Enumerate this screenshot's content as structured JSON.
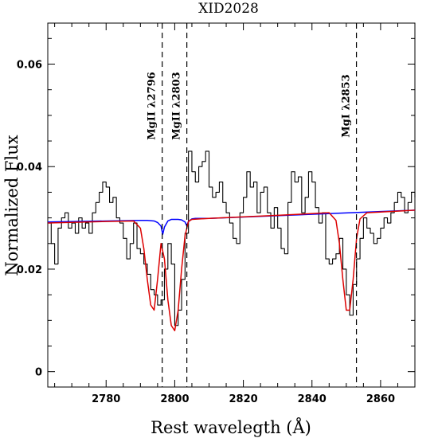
{
  "chart_data": {
    "type": "line",
    "title": "XID2028",
    "xlabel": "Rest wavelegth (Å)",
    "ylabel": "Normalized Flux",
    "xlim": [
      2763,
      2870
    ],
    "ylim": [
      -0.003,
      0.068
    ],
    "x_ticks": [
      2780,
      2800,
      2820,
      2840,
      2860
    ],
    "x_tick_labels": [
      "2780",
      "2800",
      "2820",
      "2840",
      "2860"
    ],
    "y_ticks": [
      0,
      0.02,
      0.04,
      0.06
    ],
    "y_tick_labels": [
      "0",
      "0.02",
      "0.04",
      "0.06"
    ],
    "grid": false,
    "lines": [
      {
        "label": "MgII λ2796",
        "x": 2796.35
      },
      {
        "label": "MgII λ2803",
        "x": 2803.53
      },
      {
        "label": "MgI λ2853",
        "x": 2852.96
      }
    ],
    "series": [
      {
        "style": "step",
        "color": "#000000",
        "x": [
          2763,
          2764,
          2765,
          2766,
          2767,
          2768,
          2769,
          2770,
          2771,
          2772,
          2773,
          2774,
          2775,
          2776,
          2777,
          2778,
          2779,
          2780,
          2781,
          2782,
          2783,
          2784,
          2785,
          2786,
          2787,
          2788,
          2789,
          2790,
          2791,
          2792,
          2793,
          2794,
          2795,
          2796,
          2797,
          2798,
          2799,
          2800,
          2801,
          2802,
          2803,
          2804,
          2805,
          2806,
          2807,
          2808,
          2809,
          2810,
          2811,
          2812,
          2813,
          2814,
          2815,
          2816,
          2817,
          2818,
          2819,
          2820,
          2821,
          2822,
          2823,
          2824,
          2825,
          2826,
          2827,
          2828,
          2829,
          2830,
          2831,
          2832,
          2833,
          2834,
          2835,
          2836,
          2837,
          2838,
          2839,
          2840,
          2841,
          2842,
          2843,
          2844,
          2845,
          2846,
          2847,
          2848,
          2849,
          2850,
          2851,
          2852,
          2853,
          2854,
          2855,
          2856,
          2857,
          2858,
          2859,
          2860,
          2861,
          2862,
          2863,
          2864,
          2865,
          2866,
          2867,
          2868,
          2869,
          2870
        ],
        "y": [
          0.029,
          0.025,
          0.021,
          0.028,
          0.03,
          0.031,
          0.028,
          0.029,
          0.027,
          0.03,
          0.028,
          0.029,
          0.027,
          0.031,
          0.033,
          0.035,
          0.037,
          0.036,
          0.033,
          0.034,
          0.03,
          0.029,
          0.026,
          0.022,
          0.025,
          0.029,
          0.024,
          0.023,
          0.021,
          0.019,
          0.016,
          0.015,
          0.013,
          0.014,
          0.02,
          0.025,
          0.021,
          0.009,
          0.012,
          0.018,
          0.027,
          0.043,
          0.039,
          0.037,
          0.04,
          0.041,
          0.043,
          0.036,
          0.034,
          0.035,
          0.037,
          0.033,
          0.031,
          0.029,
          0.026,
          0.025,
          0.031,
          0.034,
          0.039,
          0.036,
          0.037,
          0.031,
          0.035,
          0.036,
          0.031,
          0.028,
          0.032,
          0.028,
          0.024,
          0.023,
          0.033,
          0.039,
          0.037,
          0.038,
          0.031,
          0.034,
          0.039,
          0.037,
          0.032,
          0.029,
          0.031,
          0.022,
          0.021,
          0.022,
          0.023,
          0.026,
          0.02,
          0.015,
          0.011,
          0.017,
          0.022,
          0.026,
          0.03,
          0.028,
          0.027,
          0.025,
          0.026,
          0.028,
          0.03,
          0.029,
          0.031,
          0.033,
          0.035,
          0.034,
          0.031,
          0.033,
          0.035,
          0.034
        ]
      },
      {
        "style": "line",
        "color": "#0000ff",
        "x": [
          2763,
          2780,
          2790,
          2792,
          2794,
          2795,
          2796,
          2796.5,
          2797,
          2798,
          2799,
          2800,
          2801,
          2802,
          2803,
          2803.5,
          2804,
          2805,
          2806,
          2810,
          2870
        ],
        "y": [
          0.0292,
          0.0294,
          0.0295,
          0.0295,
          0.0294,
          0.0291,
          0.0284,
          0.0268,
          0.0282,
          0.0294,
          0.0297,
          0.0297,
          0.0297,
          0.0296,
          0.0292,
          0.0285,
          0.0293,
          0.0298,
          0.0299,
          0.0299,
          0.0315
        ]
      },
      {
        "style": "line",
        "color": "#dd0000",
        "x": [
          2763,
          2780,
          2788,
          2790,
          2791,
          2792,
          2793,
          2794,
          2795,
          2796,
          2797,
          2798,
          2799,
          2800,
          2801,
          2802,
          2803,
          2804,
          2805,
          2810,
          2830,
          2845,
          2847,
          2848,
          2849,
          2850,
          2851,
          2852,
          2853,
          2854,
          2856,
          2870
        ],
        "y": [
          0.029,
          0.0293,
          0.0294,
          0.028,
          0.024,
          0.018,
          0.013,
          0.012,
          0.018,
          0.025,
          0.022,
          0.014,
          0.009,
          0.008,
          0.012,
          0.02,
          0.0265,
          0.0293,
          0.0297,
          0.0299,
          0.0305,
          0.031,
          0.0295,
          0.025,
          0.018,
          0.012,
          0.012,
          0.018,
          0.026,
          0.0298,
          0.031,
          0.0315
        ]
      }
    ]
  }
}
